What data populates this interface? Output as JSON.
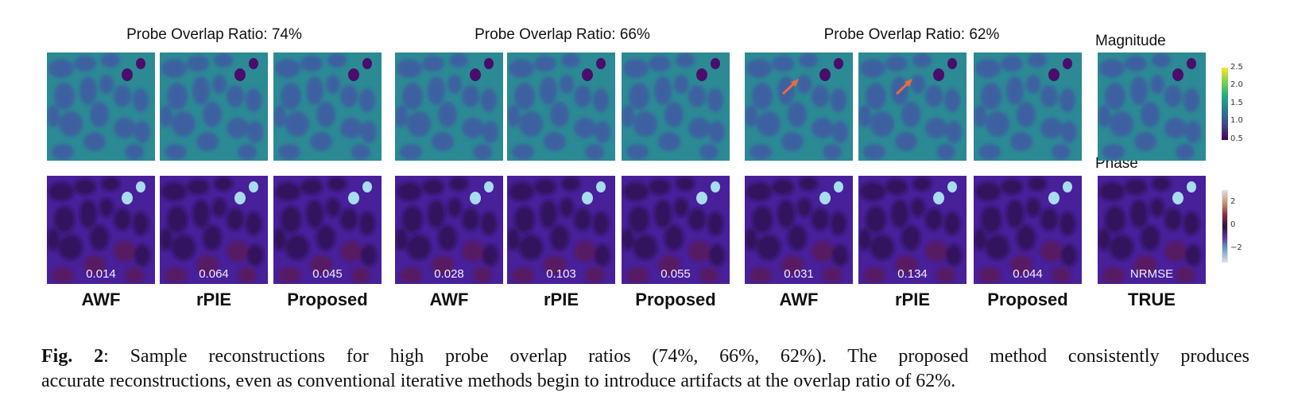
{
  "figure": {
    "groups": [
      {
        "title": "Probe Overlap Ratio: 74%",
        "panels": [
          {
            "method": "AWF",
            "nrmse": "0.014",
            "arrow": false
          },
          {
            "method": "rPIE",
            "nrmse": "0.064",
            "arrow": false
          },
          {
            "method": "Proposed",
            "nrmse": "0.045",
            "arrow": false
          }
        ]
      },
      {
        "title": "Probe Overlap Ratio: 66%",
        "panels": [
          {
            "method": "AWF",
            "nrmse": "0.028",
            "arrow": false
          },
          {
            "method": "rPIE",
            "nrmse": "0.103",
            "arrow": false
          },
          {
            "method": "Proposed",
            "nrmse": "0.055",
            "arrow": false
          }
        ]
      },
      {
        "title": "Probe Overlap Ratio: 62%",
        "panels": [
          {
            "method": "AWF",
            "nrmse": "0.031",
            "arrow": true
          },
          {
            "method": "rPIE",
            "nrmse": "0.134",
            "arrow": true
          },
          {
            "method": "Proposed",
            "nrmse": "0.044",
            "arrow": false
          }
        ]
      }
    ],
    "truth": {
      "method": "TRUE",
      "nrmse_label": "NRMSE",
      "magnitude_label": "Magnitude",
      "phase_label": "Phase"
    },
    "colorbars": {
      "magnitude": {
        "ticks": [
          "2.5",
          "2.0",
          "1.5",
          "1.0",
          "0.5"
        ],
        "range": [
          0.5,
          2.5
        ],
        "colormap": "viridis"
      },
      "phase": {
        "ticks": [
          "2",
          "0",
          "−2"
        ],
        "range": [
          -3.14,
          3.14
        ],
        "colormap": "twilight"
      }
    },
    "colors": {
      "mag_background": "#2b8a94",
      "mag_blob": "#3f5aa2",
      "mag_dot": "#4a0d6b",
      "phase_background": "#48209a",
      "phase_blob": "#2c0f50",
      "phase_red": "#5a1a55",
      "phase_dot": "#a8dcf0",
      "arrow": "#ee6a3e"
    }
  },
  "caption": {
    "label": "Fig. 2",
    "line1_rest": ":  Sample reconstructions for high probe overlap ratios (74%, 66%, 62%).  The proposed method consistently produces",
    "line2": "accurate reconstructions, even as conventional iterative methods begin to introduce artifacts at the overlap ratio of 62%."
  }
}
